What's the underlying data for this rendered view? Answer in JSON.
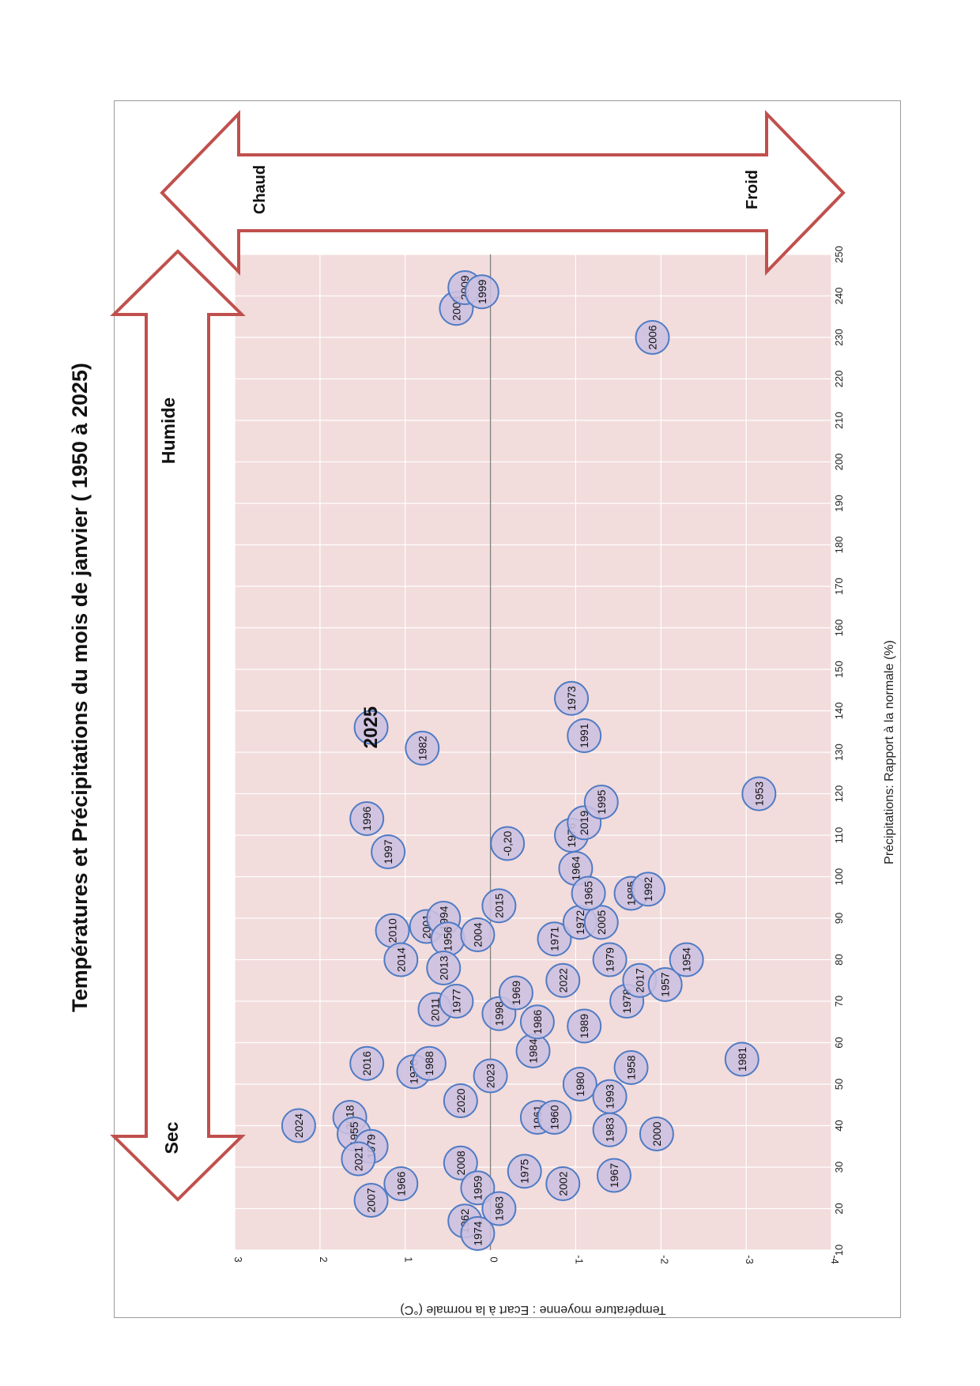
{
  "chart_data": {
    "type": "scatter",
    "title": "Températures  et Précipitations du mois de  janvier ( 1950 à 2025)",
    "xlabel": "Précipitations: Rapport à la normale (%)",
    "ylabel": "Température moyenne : Ecart à la normale (°C)",
    "xlim": [
      10,
      250
    ],
    "ylim": [
      -4,
      3
    ],
    "x_ticks": [
      "10",
      "20",
      "30",
      "40",
      "50",
      "60",
      "70",
      "80",
      "90",
      "100",
      "110",
      "120",
      "130",
      "140",
      "150",
      "160",
      "170",
      "180",
      "190",
      "200",
      "210",
      "220",
      "230",
      "240",
      "250"
    ],
    "y_ticks": [
      "3",
      "2",
      "1",
      "0",
      "-1",
      "-2",
      "-3",
      "-4"
    ],
    "grid": true,
    "arrows": {
      "precip_low": "Sec",
      "precip_high": "Humide",
      "temp_high": "Chaud",
      "temp_low": "Froid"
    },
    "highlight": {
      "label": "2025",
      "x": 136,
      "y": 1.4
    },
    "points": [
      {
        "label": "2024",
        "x": 40,
        "y": 2.25
      },
      {
        "label": "2018",
        "x": 42,
        "y": 1.65
      },
      {
        "label": "1955",
        "x": 38,
        "y": 1.6
      },
      {
        "label": "1979",
        "x": 35,
        "y": 1.4
      },
      {
        "label": "2021",
        "x": 32,
        "y": 1.55
      },
      {
        "label": "2007",
        "x": 22,
        "y": 1.4
      },
      {
        "label": "1966",
        "x": 26,
        "y": 1.05
      },
      {
        "label": "2016",
        "x": 55,
        "y": 1.45
      },
      {
        "label": "1970",
        "x": 53,
        "y": 0.9
      },
      {
        "label": "1988",
        "x": 55,
        "y": 0.72
      },
      {
        "label": "2008",
        "x": 31,
        "y": 0.35
      },
      {
        "label": "2020",
        "x": 46,
        "y": 0.35
      },
      {
        "label": "1959",
        "x": 25,
        "y": 0.15
      },
      {
        "label": "1962",
        "x": 17,
        "y": 0.3
      },
      {
        "label": "1974",
        "x": 14,
        "y": 0.15
      },
      {
        "label": "1963",
        "x": 20,
        "y": -0.1
      },
      {
        "label": "2023",
        "x": 52,
        "y": 0.0
      },
      {
        "label": "1975",
        "x": 29,
        "y": -0.4
      },
      {
        "label": "2002",
        "x": 26,
        "y": -0.85
      },
      {
        "label": "1961",
        "x": 42,
        "y": -0.55
      },
      {
        "label": "1960",
        "x": 42,
        "y": -0.75
      },
      {
        "label": "1984",
        "x": 58,
        "y": -0.5
      },
      {
        "label": "1980",
        "x": 50,
        "y": -1.05
      },
      {
        "label": "1993",
        "x": 47,
        "y": -1.4
      },
      {
        "label": "1983",
        "x": 39,
        "y": -1.4
      },
      {
        "label": "1967",
        "x": 28,
        "y": -1.45
      },
      {
        "label": "1958",
        "x": 54,
        "y": -1.65
      },
      {
        "label": "2000",
        "x": 38,
        "y": -1.95
      },
      {
        "label": "1981",
        "x": 56,
        "y": -2.95
      },
      {
        "label": "1997",
        "x": 106,
        "y": 1.2
      },
      {
        "label": "1996",
        "x": 114,
        "y": 1.45
      },
      {
        "label": "1982",
        "x": 131,
        "y": 0.8
      },
      {
        "label": "2010",
        "x": 87,
        "y": 1.15
      },
      {
        "label": "2014",
        "x": 80,
        "y": 1.05
      },
      {
        "label": "2001",
        "x": 88,
        "y": 0.75
      },
      {
        "label": "1994",
        "x": 90,
        "y": 0.55
      },
      {
        "label": "1956",
        "x": 85,
        "y": 0.5
      },
      {
        "label": "2013",
        "x": 78,
        "y": 0.55
      },
      {
        "label": "2011",
        "x": 68,
        "y": 0.65
      },
      {
        "label": "1977",
        "x": 70,
        "y": 0.4
      },
      {
        "label": "2004",
        "x": 86,
        "y": 0.15
      },
      {
        "label": "1998",
        "x": 67,
        "y": -0.1
      },
      {
        "label": "2015",
        "x": 93,
        "y": -0.1
      },
      {
        "label": "-0,20",
        "x": 108,
        "y": -0.2
      },
      {
        "label": "1969",
        "x": 72,
        "y": -0.3
      },
      {
        "label": "1986",
        "x": 65,
        "y": -0.55
      },
      {
        "label": "2022",
        "x": 75,
        "y": -0.85
      },
      {
        "label": "1971",
        "x": 85,
        "y": -0.75
      },
      {
        "label": "1972",
        "x": 89,
        "y": -1.05
      },
      {
        "label": "2005",
        "x": 89,
        "y": -1.3
      },
      {
        "label": "1989",
        "x": 64,
        "y": -1.1
      },
      {
        "label": "1979",
        "x": 80,
        "y": -1.4
      },
      {
        "label": "1978",
        "x": 70,
        "y": -1.6
      },
      {
        "label": "2017",
        "x": 75,
        "y": -1.75
      },
      {
        "label": "1957",
        "x": 74,
        "y": -2.05
      },
      {
        "label": "1954",
        "x": 80,
        "y": -2.3
      },
      {
        "label": "1964",
        "x": 102,
        "y": -1.0
      },
      {
        "label": "1965",
        "x": 96,
        "y": -1.15
      },
      {
        "label": "1985",
        "x": 96,
        "y": -1.65
      },
      {
        "label": "1992",
        "x": 97,
        "y": -1.85
      },
      {
        "label": "1976",
        "x": 110,
        "y": -0.95
      },
      {
        "label": "2019",
        "x": 113,
        "y": -1.1
      },
      {
        "label": "1995",
        "x": 118,
        "y": -1.3
      },
      {
        "label": "1991",
        "x": 134,
        "y": -1.1
      },
      {
        "label": "1973",
        "x": 143,
        "y": -0.95
      },
      {
        "label": "1953",
        "x": 120,
        "y": -3.15
      },
      {
        "label": "2006",
        "x": 230,
        "y": -1.9
      },
      {
        "label": "2003",
        "x": 237,
        "y": 0.4
      },
      {
        "label": "2009",
        "x": 242,
        "y": 0.3
      },
      {
        "label": "1999",
        "x": 241,
        "y": 0.1
      }
    ]
  }
}
